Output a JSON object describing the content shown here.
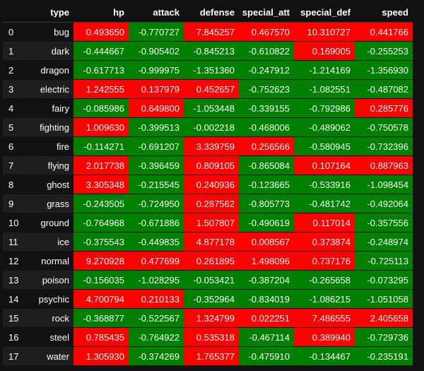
{
  "colors": {
    "positive": "#ff0000",
    "negative": "#008000"
  },
  "columns": [
    "",
    "type",
    "hp",
    "attack",
    "defense",
    "special_att",
    "special_def",
    "speed"
  ],
  "rows": [
    {
      "index": "0",
      "type": "bug",
      "hp": "0.493650",
      "attack": "-0.770727",
      "defense": "7.845257",
      "special_att": "0.467570",
      "special_def": "10.310727",
      "speed": "0.441766"
    },
    {
      "index": "1",
      "type": "dark",
      "hp": "-0.444667",
      "attack": "-0.905402",
      "defense": "-0.845213",
      "special_att": "-0.610822",
      "special_def": "0.169005",
      "speed": "-0.255253"
    },
    {
      "index": "2",
      "type": "dragon",
      "hp": "-0.617713",
      "attack": "-0.999975",
      "defense": "-1.351360",
      "special_att": "-0.247912",
      "special_def": "-1.214169",
      "speed": "-1.356930"
    },
    {
      "index": "3",
      "type": "electric",
      "hp": "1.242555",
      "attack": "0.137979",
      "defense": "0.452657",
      "special_att": "-0.752623",
      "special_def": "-1.082551",
      "speed": "-0.487082"
    },
    {
      "index": "4",
      "type": "fairy",
      "hp": "-0.085986",
      "attack": "0.649800",
      "defense": "-1.053448",
      "special_att": "-0.339155",
      "special_def": "-0.792986",
      "speed": "0.285776"
    },
    {
      "index": "5",
      "type": "fighting",
      "hp": "1.009630",
      "attack": "-0.399513",
      "defense": "-0.002218",
      "special_att": "-0.468006",
      "special_def": "-0.489062",
      "speed": "-0.750578"
    },
    {
      "index": "6",
      "type": "fire",
      "hp": "-0.114271",
      "attack": "-0.691207",
      "defense": "3.339759",
      "special_att": "0.256566",
      "special_def": "-0.580945",
      "speed": "-0.732396"
    },
    {
      "index": "7",
      "type": "flying",
      "hp": "2.017738",
      "attack": "-0.396459",
      "defense": "0.809105",
      "special_att": "-0.865084",
      "special_def": "0.107164",
      "speed": "0.887963"
    },
    {
      "index": "8",
      "type": "ghost",
      "hp": "3.305348",
      "attack": "-0.215545",
      "defense": "0.240936",
      "special_att": "-0.123665",
      "special_def": "-0.533916",
      "speed": "-1.098454"
    },
    {
      "index": "9",
      "type": "grass",
      "hp": "-0.243505",
      "attack": "-0.724950",
      "defense": "0.287562",
      "special_att": "-0.805773",
      "special_def": "-0.481742",
      "speed": "-0.492064"
    },
    {
      "index": "10",
      "type": "ground",
      "hp": "-0.764968",
      "attack": "-0.671886",
      "defense": "1.507807",
      "special_att": "-0.490619",
      "special_def": "0.117014",
      "speed": "-0.357556"
    },
    {
      "index": "11",
      "type": "ice",
      "hp": "-0.375543",
      "attack": "-0.449835",
      "defense": "4.877178",
      "special_att": "0.008567",
      "special_def": "0.373874",
      "speed": "-0.248974"
    },
    {
      "index": "12",
      "type": "normal",
      "hp": "9.270928",
      "attack": "0.477699",
      "defense": "0.261895",
      "special_att": "1.498096",
      "special_def": "0.737176",
      "speed": "-0.725113"
    },
    {
      "index": "13",
      "type": "poison",
      "hp": "-0.156035",
      "attack": "-1.028295",
      "defense": "-0.053421",
      "special_att": "-0.387204",
      "special_def": "-0.265658",
      "speed": "-0.073295"
    },
    {
      "index": "14",
      "type": "psychic",
      "hp": "4.700794",
      "attack": "0.210133",
      "defense": "-0.352964",
      "special_att": "-0.834019",
      "special_def": "-1.086215",
      "speed": "-1.051058"
    },
    {
      "index": "15",
      "type": "rock",
      "hp": "-0.368877",
      "attack": "-0.522567",
      "defense": "1.324799",
      "special_att": "0.022251",
      "special_def": "7.486555",
      "speed": "2.405658"
    },
    {
      "index": "16",
      "type": "steel",
      "hp": "0.785435",
      "attack": "-0.764922",
      "defense": "0.535318",
      "special_att": "-0.467114",
      "special_def": "0.389940",
      "speed": "-0.729736"
    },
    {
      "index": "17",
      "type": "water",
      "hp": "1.305930",
      "attack": "-0.374269",
      "defense": "1.765377",
      "special_att": "-0.475910",
      "special_def": "-0.134467",
      "speed": "-0.235191"
    }
  ]
}
